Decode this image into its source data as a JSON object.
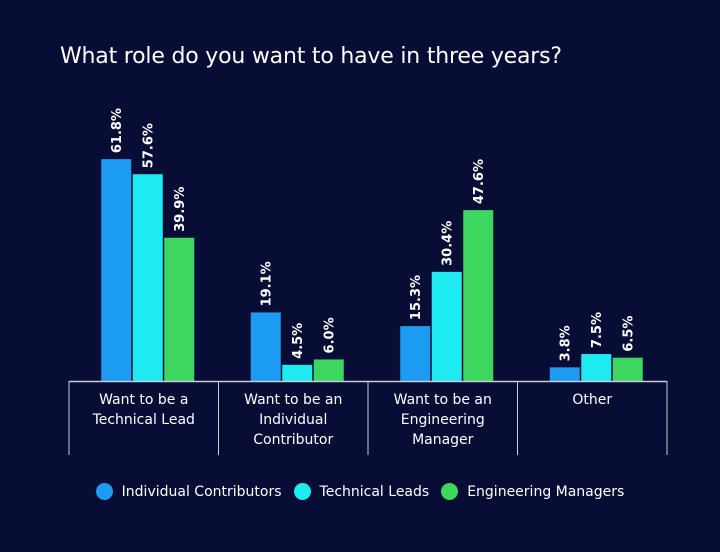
{
  "chart_data": {
    "type": "bar",
    "title": "What role do you want to have in three years?",
    "categories": [
      [
        "Want to be a",
        "Technical Lead"
      ],
      [
        "Want to be an",
        "Individual",
        "Contributor"
      ],
      [
        "Want to be an",
        "Engineering",
        "Manager"
      ],
      [
        "Other"
      ]
    ],
    "series": [
      {
        "name": "Individual Contributors",
        "color": "#1b9bf2",
        "values": [
          61.8,
          19.1,
          15.3,
          3.8
        ]
      },
      {
        "name": "Technical Leads",
        "color": "#1eeaf2",
        "values": [
          57.6,
          4.5,
          30.4,
          7.5
        ]
      },
      {
        "name": "Engineering Managers",
        "color": "#3dd65f",
        "values": [
          39.9,
          6.0,
          47.6,
          6.5
        ]
      }
    ],
    "value_suffix": "%",
    "ylim": [
      0,
      70
    ],
    "grid": false,
    "legend_position": "bottom"
  }
}
